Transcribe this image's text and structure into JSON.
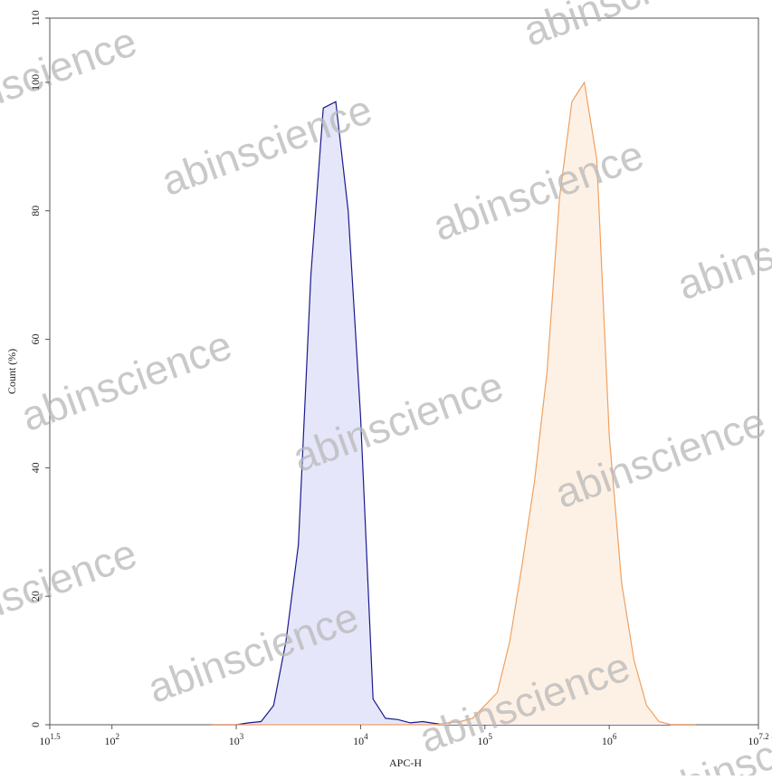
{
  "chart_data": {
    "type": "area",
    "xlabel": "APC-H",
    "ylabel": "Count (%)",
    "watermark": "abinscience",
    "x_scale": "log",
    "xlim": [
      31.62,
      15848932
    ],
    "xticks": [
      {
        "value": 31.62,
        "label": "10",
        "superscript": "1.5"
      },
      {
        "value": 100,
        "label": "10",
        "superscript": "2"
      },
      {
        "value": 1000,
        "label": "10",
        "superscript": "3"
      },
      {
        "value": 10000,
        "label": "10",
        "superscript": "4"
      },
      {
        "value": 100000,
        "label": "10",
        "superscript": "5"
      },
      {
        "value": 1000000,
        "label": "10",
        "superscript": "6"
      },
      {
        "value": 15848932,
        "label": "10",
        "superscript": "7.2"
      }
    ],
    "ylim": [
      0,
      110
    ],
    "yticks": [
      0,
      20,
      40,
      60,
      80,
      100,
      110
    ],
    "x": [
      631,
      794,
      1000,
      1259,
      1585,
      1995,
      2512,
      3162,
      3981,
      5012,
      6310,
      7943,
      10000,
      12589,
      15849,
      19953,
      25119,
      31623,
      39811,
      50119,
      63096,
      79433,
      100000,
      125893,
      158489,
      199526,
      251189,
      316228,
      398107,
      501187,
      630957,
      794328,
      1000000,
      1258925,
      1584893,
      1995262,
      2511886,
      3162278,
      3981072,
      5011872
    ],
    "series": [
      {
        "color": "#1a1a8c",
        "fill": "#e6e6fa",
        "values": [
          0,
          0,
          0,
          0.3,
          0.5,
          3,
          13,
          28,
          70,
          96,
          97,
          80,
          48,
          4,
          1,
          0.8,
          0.3,
          0.5,
          0.2,
          0,
          0,
          0,
          0,
          0,
          0,
          0,
          0,
          0,
          0,
          0,
          0,
          0,
          0,
          0,
          0,
          0,
          0,
          0,
          0,
          0
        ]
      },
      {
        "color": "#f0a060",
        "fill": "#fdf1e6",
        "values": [
          0,
          0,
          0,
          0,
          0,
          0,
          0,
          0,
          0,
          0,
          0,
          0,
          0,
          0,
          0,
          0,
          0,
          0,
          0,
          0.3,
          0.5,
          1,
          3,
          5,
          13,
          25,
          38,
          55,
          82,
          97,
          100,
          88,
          45,
          22,
          10,
          3,
          0.5,
          0,
          0,
          0
        ]
      }
    ]
  }
}
